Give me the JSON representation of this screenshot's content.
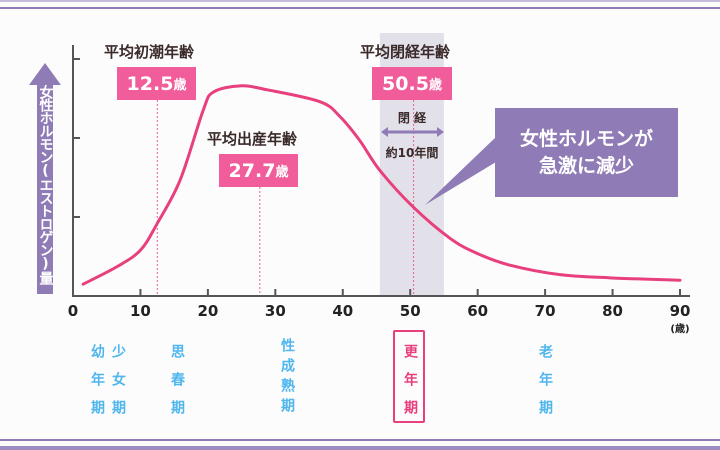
{
  "chart_data": {
    "type": "line",
    "ylabel": "女性ホルモン(エストロゲン)量",
    "xlim": [
      0,
      90
    ],
    "ylim": [
      0,
      3
    ],
    "x_ticks": [
      "0",
      "10",
      "20",
      "30",
      "40",
      "50",
      "60",
      "70",
      "80",
      "90"
    ],
    "x_unit": "(歳)",
    "y_ticks_labeled": false,
    "grid": false,
    "series": [
      {
        "color": "#e8407e",
        "x": [
          1.5,
          6.5,
          10,
          12.5,
          15.9,
          19.3,
          20.8,
          24.8,
          28.8,
          36.6,
          39.6,
          42.5,
          45.5,
          50.4,
          55.9,
          59.9,
          64.8,
          72.2,
          79.6,
          90
        ],
        "y": [
          0.15,
          0.37,
          0.58,
          0.92,
          1.47,
          2.35,
          2.58,
          2.66,
          2.61,
          2.46,
          2.27,
          1.97,
          1.59,
          1.13,
          0.73,
          0.54,
          0.39,
          0.27,
          0.23,
          0.2
        ]
      }
    ],
    "annotations": [
      {
        "title": "平均初潮年齢",
        "value": "12.5",
        "unit": "歳",
        "x": 12.5
      },
      {
        "title": "平均出産年齢",
        "value": "27.7",
        "unit": "歳",
        "x": 27.7
      },
      {
        "title": "平均閉経年齢",
        "value": "50.5",
        "unit": "歳",
        "x": 50.5
      }
    ],
    "menopause_band": {
      "x_range": [
        45.5,
        55
      ],
      "label": "閉 経",
      "span_label": "約10年間",
      "color": "#e2e1ea"
    },
    "callout": {
      "lines": [
        "女性ホルモンが",
        "急激に減少"
      ],
      "color": "#8f7bb5"
    },
    "life_stages": [
      {
        "label": "幼年期",
        "highlight": false
      },
      {
        "label": "少女期",
        "highlight": false
      },
      {
        "label": "思春期",
        "highlight": false
      },
      {
        "label": "性成熟期",
        "highlight": false
      },
      {
        "label": "更年期",
        "highlight": true
      },
      {
        "label": "老年期",
        "highlight": false
      }
    ]
  },
  "colors": {
    "accent": "#f05d9a",
    "curve": "#e8407e",
    "purple": "#8f7bb5",
    "stage": "#4fb6ee",
    "stage_highlight": "#e8407e"
  }
}
